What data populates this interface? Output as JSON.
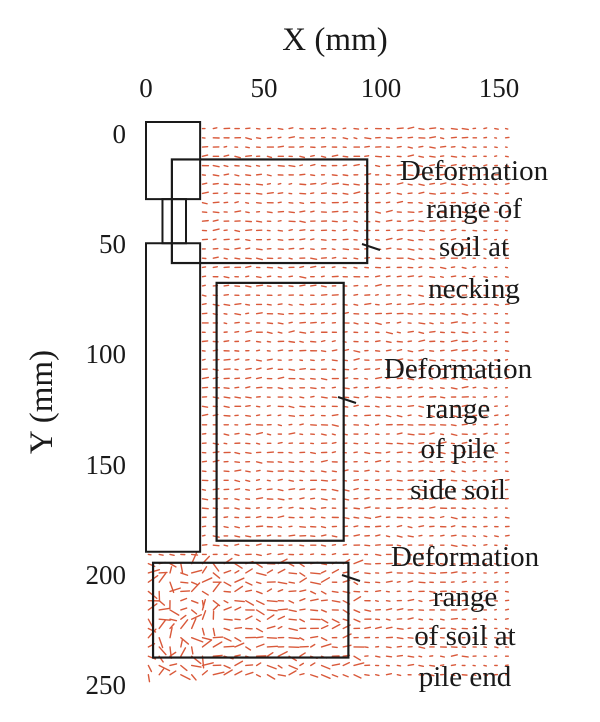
{
  "chart_data": {
    "type": "scatter",
    "title": "",
    "xlabel": "X (mm)",
    "ylabel": "Y (mm)",
    "xlim": [
      0,
      150
    ],
    "ylim": [
      0,
      250
    ],
    "y_inverted": true,
    "x_axis_position": "top",
    "x_ticks": [
      "0",
      "50",
      "100",
      "150"
    ],
    "y_ticks": [
      "0",
      "50",
      "100",
      "150",
      "200",
      "250"
    ],
    "grid": false,
    "legend": "none",
    "vector_color": "#d9593a",
    "pile_outline": {
      "shaft_upper": [
        [
          0,
          -5
        ],
        [
          23,
          -5
        ],
        [
          23,
          30
        ],
        [
          0,
          30
        ]
      ],
      "necking": [
        [
          7,
          30
        ],
        [
          17,
          30
        ],
        [
          17,
          50
        ],
        [
          7,
          50
        ]
      ],
      "shaft_lower": [
        [
          0,
          50
        ],
        [
          23,
          50
        ],
        [
          23,
          190
        ],
        [
          0,
          190
        ]
      ]
    },
    "regions": [
      {
        "label_lines": [
          "Deformation",
          "range of",
          "soil at",
          "necking"
        ],
        "x": [
          11,
          94
        ],
        "y": [
          12,
          59
        ]
      },
      {
        "label_lines": [
          "Deformation",
          "range",
          "of pile",
          "side soil"
        ],
        "x": [
          30,
          84
        ],
        "y": [
          68,
          185
        ]
      },
      {
        "label_lines": [
          "Deformation",
          "range",
          "of soil at",
          "pile end"
        ],
        "x": [
          3,
          86
        ],
        "y": [
          195,
          238
        ]
      }
    ]
  }
}
